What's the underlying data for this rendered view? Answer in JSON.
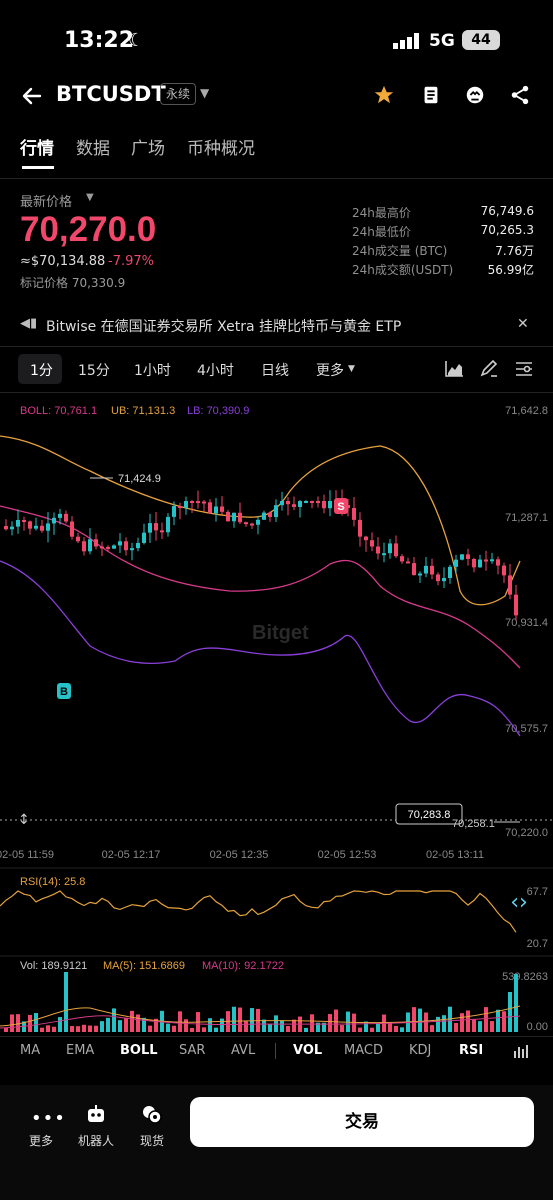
{
  "status_bar": {
    "time": "13:22",
    "network": "5G",
    "battery": "44"
  },
  "header": {
    "pair": "BTCUSDT",
    "contract_type": "永续"
  },
  "tabs": [
    "行情",
    "数据",
    "广场",
    "币种概况"
  ],
  "ticker": {
    "latest_label": "最新价格",
    "price": "70,270.0",
    "usd_price": "≈$70,134.88",
    "change": "-7.97%",
    "mark_price": "标记价格 70,330.9",
    "stats": [
      {
        "label": "24h最高价",
        "value": "76,749.6"
      },
      {
        "label": "24h最低价",
        "value": "70,265.3"
      },
      {
        "label": "24h成交量 (BTC)",
        "value": "7.76万"
      },
      {
        "label": "24h成交额(USDT)",
        "value": "56.99亿"
      }
    ]
  },
  "news": {
    "text": "Bitwise 在德国证券交易所 Xetra 挂牌比特币与黄金 ETP"
  },
  "timeframes": [
    "1分",
    "15分",
    "1小时",
    "4小时",
    "日线",
    "更多"
  ],
  "chart": {
    "boll_legend": "BOLL: 70,761.1",
    "ub_legend": "UB: 71,131.3",
    "lb_legend": "LB: 70,390.9",
    "y_ticks": [
      "71,642.8",
      "71,287.1",
      "70,931.4",
      "70,575.7",
      "70,220.0"
    ],
    "x_ticks": [
      "02-05 11:59",
      "02-05 12:17",
      "02-05 12:35",
      "02-05 12:53",
      "02-05 13:11"
    ],
    "high_marker": "71,424.9",
    "current_price_tag": "70,283.8",
    "low_marker": "70,258.1",
    "watermark": "Bitget",
    "buy_marker": "B",
    "sell_marker": "S",
    "rsi_legend": "RSI(14): 25.8",
    "rsi_upper": "67.7",
    "rsi_lower": "20.7",
    "vol_legend": "Vol: 189.9121",
    "ma5_legend": "MA(5): 151.6869",
    "ma10_legend": "MA(10): 92.1722",
    "vol_top": "539.8263",
    "vol_bottom": "0.00",
    "colors": {
      "up": "#27c2c8",
      "down": "#f0476b",
      "ub": "#e6a23c",
      "mid": "#d63a8a",
      "lb": "#8a3fd9",
      "rsi": "#e6a23c"
    }
  },
  "indicators": [
    "MA",
    "EMA",
    "BOLL",
    "SAR",
    "AVL",
    "VOL",
    "MACD",
    "KDJ",
    "RSI"
  ],
  "bottom_nav": {
    "more": "更多",
    "bot": "机器人",
    "spot": "现货",
    "trade": "交易"
  }
}
